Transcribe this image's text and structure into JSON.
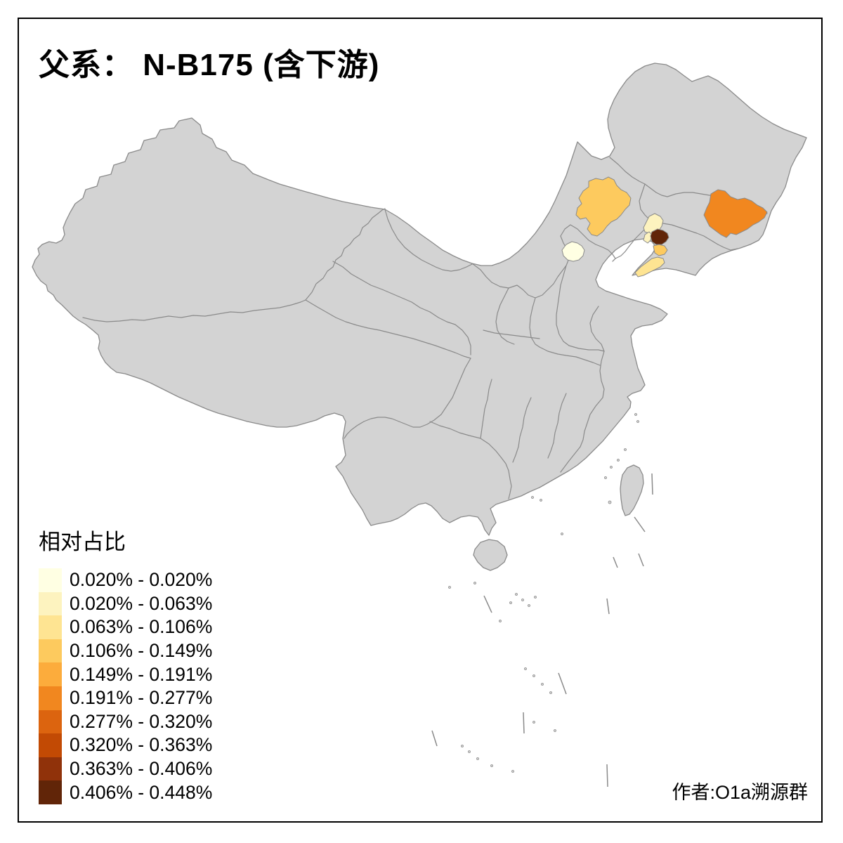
{
  "title": "父系： N-B175 (含下游)",
  "legend": {
    "title": "相对占比",
    "classes": [
      {
        "label": "0.020% - 0.020%",
        "color": "#FFFFE3"
      },
      {
        "label": "0.020% - 0.063%",
        "color": "#FDF3BF"
      },
      {
        "label": "0.063% - 0.106%",
        "color": "#FEE492"
      },
      {
        "label": "0.106% - 0.149%",
        "color": "#FDCA5E"
      },
      {
        "label": "0.149% - 0.191%",
        "color": "#FCAC3C"
      },
      {
        "label": "0.191% - 0.277%",
        "color": "#F1871F"
      },
      {
        "label": "0.277% - 0.320%",
        "color": "#DC640F"
      },
      {
        "label": "0.320% - 0.363%",
        "color": "#C24A04"
      },
      {
        "label": "0.363% - 0.406%",
        "color": "#90320A"
      },
      {
        "label": "0.406% - 0.448%",
        "color": "#612508"
      }
    ]
  },
  "map": {
    "land_fill": "#d3d3d3",
    "border_color": "#8a8a8a",
    "regions": [
      {
        "id": "region-inner-mongolia-east",
        "class_index": 3
      },
      {
        "id": "region-jilin-east",
        "class_index": 5
      },
      {
        "id": "region-beijing",
        "class_index": 0
      },
      {
        "id": "region-liaoning-north",
        "class_index": 1
      },
      {
        "id": "region-liaoning-west-small",
        "class_index": 1
      },
      {
        "id": "region-liaoning-dark",
        "class_index": 9
      },
      {
        "id": "region-liaoning-mid",
        "class_index": 3
      },
      {
        "id": "region-liaoning-coast",
        "class_index": 2
      }
    ]
  },
  "attribution": "作者:O1a溯源群"
}
